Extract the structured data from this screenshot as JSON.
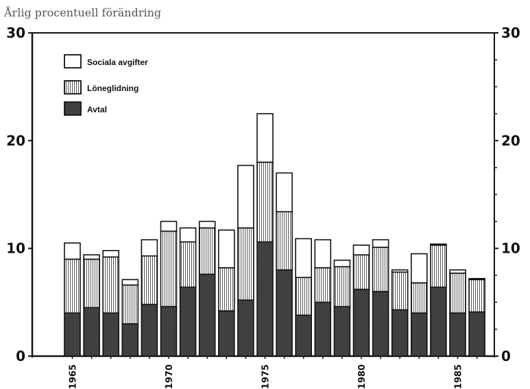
{
  "chart_data": {
    "type": "bar",
    "stacked": true,
    "title": "Årlig procentuell förändring",
    "xlabel": "",
    "ylabel": "",
    "ylim": [
      0,
      30
    ],
    "y_ticks": [
      0,
      10,
      20,
      30
    ],
    "y_ticks_right": [
      "0",
      "10",
      "20",
      "30"
    ],
    "x": [
      1965,
      1966,
      1967,
      1968,
      1969,
      1970,
      1971,
      1972,
      1973,
      1974,
      1975,
      1976,
      1977,
      1978,
      1979,
      1980,
      1981,
      1982,
      1983,
      1984,
      1985,
      1986
    ],
    "x_tick_labels": [
      "1965",
      "1970",
      "1975",
      "1980",
      "1985"
    ],
    "legend_position": "top-left",
    "series": [
      {
        "name": "Avtal",
        "color": "#2b2b2b",
        "values": [
          4.0,
          4.5,
          4.0,
          3.0,
          4.8,
          4.6,
          6.4,
          7.6,
          4.2,
          5.2,
          10.6,
          8.0,
          3.8,
          5.0,
          4.6,
          6.2,
          6.0,
          4.3,
          4.0,
          6.4,
          4.0,
          4.1
        ]
      },
      {
        "name": "Löneglidning",
        "color": "#8a8a8a",
        "values": [
          5.0,
          4.5,
          5.2,
          3.6,
          4.5,
          7.0,
          4.2,
          4.3,
          4.0,
          6.7,
          7.4,
          5.4,
          3.5,
          3.2,
          3.7,
          3.2,
          4.1,
          3.5,
          2.8,
          3.9,
          3.7,
          3.0
        ]
      },
      {
        "name": "Sociala avgifter",
        "color": "#ffffff",
        "values": [
          1.5,
          0.4,
          0.6,
          0.5,
          1.5,
          0.9,
          1.3,
          0.6,
          3.5,
          5.8,
          4.5,
          3.6,
          3.6,
          2.6,
          0.6,
          0.9,
          0.7,
          0.2,
          2.7,
          0.1,
          0.3,
          0.1
        ]
      }
    ]
  }
}
